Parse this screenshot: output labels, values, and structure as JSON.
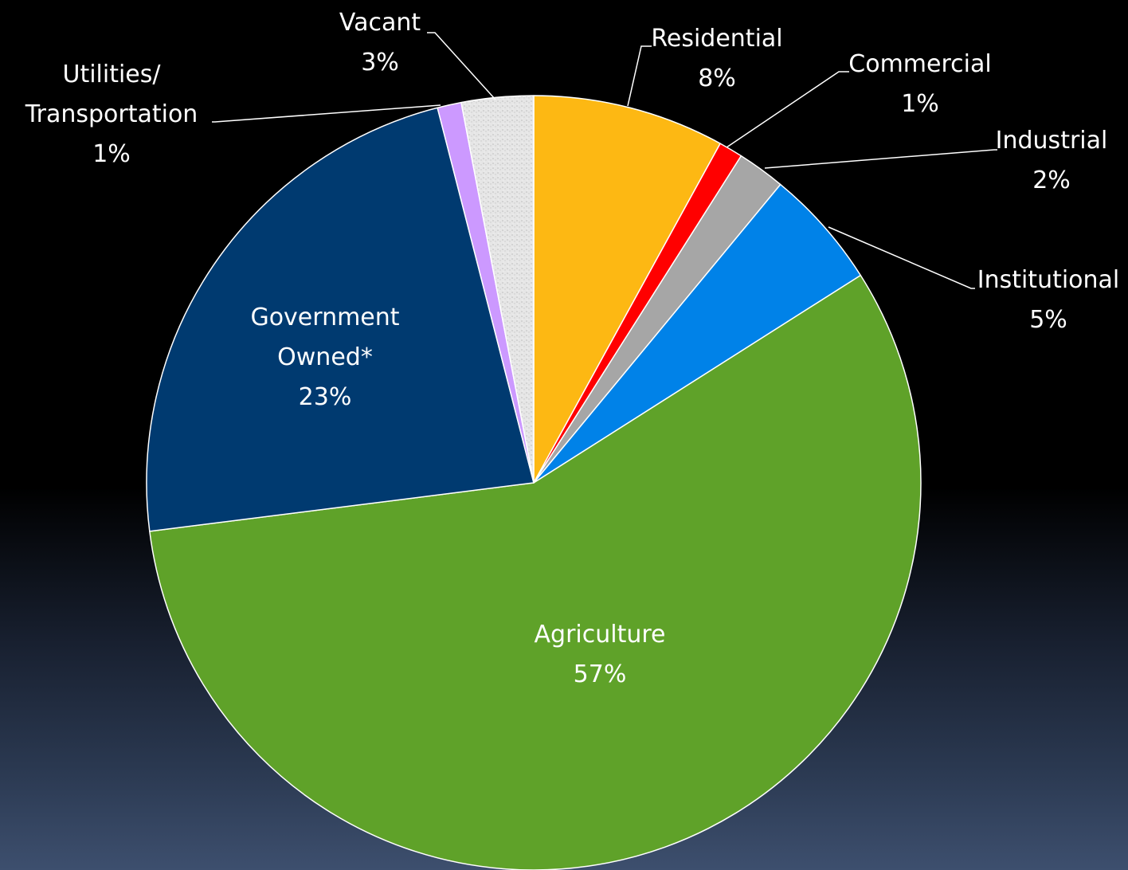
{
  "chart_data": {
    "type": "pie",
    "slices": [
      {
        "label": "Residential",
        "label_lines": [
          "Residential"
        ],
        "value": 8,
        "value_text": "8%",
        "color": "#fdb813"
      },
      {
        "label": "Commercial",
        "label_lines": [
          "Commercial"
        ],
        "value": 1,
        "value_text": "1%",
        "color": "#ff0000"
      },
      {
        "label": "Industrial",
        "label_lines": [
          "Industrial"
        ],
        "value": 2,
        "value_text": "2%",
        "color": "#a6a6a6"
      },
      {
        "label": "Institutional",
        "label_lines": [
          "Institutional"
        ],
        "value": 5,
        "value_text": "5%",
        "color": "#0082e8"
      },
      {
        "label": "Agriculture",
        "label_lines": [
          "Agriculture"
        ],
        "value": 57,
        "value_text": "57%",
        "color": "#5fa229"
      },
      {
        "label": "Government Owned*",
        "label_lines": [
          "Government",
          "Owned*"
        ],
        "value": 23,
        "value_text": "23%",
        "color": "#003a70"
      },
      {
        "label": "Utilities/ Transportation",
        "label_lines": [
          "Utilities/",
          "Transportation"
        ],
        "value": 1,
        "value_text": "1%",
        "color": "#cc99ff"
      },
      {
        "label": "Vacant",
        "label_lines": [
          "Vacant"
        ],
        "value": 3,
        "value_text": "3%",
        "color": "#e6e6e6"
      }
    ],
    "start_angle": "12 o'clock",
    "direction": "clockwise",
    "legend": "none"
  }
}
